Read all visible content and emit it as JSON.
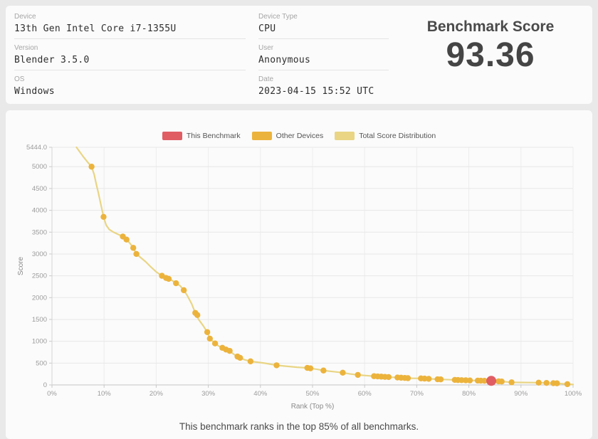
{
  "page": {
    "background": "#e9e9e9",
    "card_background": "#fbfbfb"
  },
  "info_card": {
    "fields_left": [
      {
        "label": "Device",
        "value": "13th Gen Intel Core i7-1355U"
      },
      {
        "label": "Version",
        "value": "Blender 3.5.0"
      },
      {
        "label": "OS",
        "value": "Windows"
      }
    ],
    "fields_right": [
      {
        "label": "Device Type",
        "value": "CPU"
      },
      {
        "label": "User",
        "value": "Anonymous"
      },
      {
        "label": "Date",
        "value": "2023-04-15 15:52 UTC"
      }
    ],
    "score_title": "Benchmark Score",
    "score_value": "93.36"
  },
  "chart_card": {
    "caption": "This benchmark ranks in the top 85% of all benchmarks."
  },
  "chart_data": {
    "type": "line",
    "title": "",
    "xlabel": "Rank (Top %)",
    "ylabel": "Score",
    "xlim": [
      0,
      100
    ],
    "ylim": [
      0,
      5444
    ],
    "y_max_label": "5444.0",
    "y_ticks": [
      0,
      500,
      1000,
      1500,
      2000,
      2500,
      3000,
      3500,
      4000,
      4500,
      5000
    ],
    "x_ticks": [
      "0%",
      "10%",
      "20%",
      "30%",
      "40%",
      "50%",
      "60%",
      "70%",
      "80%",
      "90%",
      "100%"
    ],
    "grid": true,
    "legend_position": "top-center",
    "legend": [
      {
        "label": "This Benchmark",
        "color": "#e05d64"
      },
      {
        "label": "Other Devices",
        "color": "#ecb33c"
      },
      {
        "label": "Total Score Distribution",
        "color": "#e9d584"
      }
    ],
    "series": [
      {
        "name": "Total Score Distribution",
        "type": "line",
        "color": "#e9d584",
        "points": [
          [
            4.7,
            5444
          ],
          [
            5.2,
            5360
          ],
          [
            6.0,
            5230
          ],
          [
            6.8,
            5110
          ],
          [
            7.6,
            5000
          ],
          [
            8.1,
            4820
          ],
          [
            8.5,
            4600
          ],
          [
            8.9,
            4400
          ],
          [
            9.3,
            4180
          ],
          [
            9.9,
            3850
          ],
          [
            10.4,
            3660
          ],
          [
            11.0,
            3560
          ],
          [
            11.8,
            3500
          ],
          [
            12.7,
            3450
          ],
          [
            13.6,
            3400
          ],
          [
            14.3,
            3330
          ],
          [
            15.0,
            3240
          ],
          [
            15.6,
            3140
          ],
          [
            16.2,
            3000
          ],
          [
            17.0,
            2920
          ],
          [
            18.0,
            2820
          ],
          [
            19.0,
            2700
          ],
          [
            20.0,
            2590
          ],
          [
            21.1,
            2500
          ],
          [
            21.9,
            2450
          ],
          [
            22.4,
            2430
          ],
          [
            23.1,
            2390
          ],
          [
            23.8,
            2330
          ],
          [
            24.6,
            2270
          ],
          [
            25.3,
            2170
          ],
          [
            26.0,
            2040
          ],
          [
            26.8,
            1860
          ],
          [
            27.5,
            1650
          ],
          [
            28.2,
            1490
          ],
          [
            29.0,
            1360
          ],
          [
            29.8,
            1210
          ],
          [
            30.3,
            1060
          ],
          [
            31.3,
            950
          ],
          [
            32.0,
            890
          ],
          [
            32.7,
            850
          ],
          [
            33.4,
            810
          ],
          [
            34.1,
            780
          ],
          [
            34.8,
            710
          ],
          [
            35.6,
            650
          ],
          [
            36.1,
            620
          ],
          [
            37.0,
            575
          ],
          [
            38.1,
            540
          ],
          [
            39.5,
            520
          ],
          [
            41.0,
            495
          ],
          [
            43.1,
            450
          ],
          [
            45.0,
            428
          ],
          [
            47.0,
            405
          ],
          [
            49.0,
            390
          ],
          [
            49.6,
            380
          ],
          [
            51.0,
            355
          ],
          [
            52.1,
            330
          ],
          [
            54.0,
            305
          ],
          [
            55.8,
            280
          ],
          [
            57.2,
            252
          ],
          [
            58.7,
            230
          ],
          [
            60.2,
            215
          ],
          [
            61.8,
            200
          ],
          [
            63.2,
            190
          ],
          [
            64.6,
            180
          ],
          [
            66.3,
            170
          ],
          [
            67.7,
            160
          ],
          [
            69.0,
            153
          ],
          [
            70.8,
            150
          ],
          [
            72.3,
            140
          ],
          [
            74.0,
            130
          ],
          [
            74.6,
            127
          ],
          [
            76.0,
            121
          ],
          [
            77.3,
            115
          ],
          [
            78.6,
            109
          ],
          [
            80.2,
            103
          ],
          [
            81.7,
            99
          ],
          [
            83.0,
            95
          ],
          [
            84.3,
            93
          ],
          [
            85.7,
            82
          ],
          [
            86.3,
            78
          ],
          [
            88.2,
            60
          ],
          [
            89.5,
            57
          ],
          [
            91.0,
            55
          ],
          [
            93.4,
            52
          ],
          [
            94.9,
            46
          ],
          [
            96.2,
            40
          ],
          [
            96.9,
            37
          ],
          [
            98.9,
            18
          ],
          [
            100,
            10
          ]
        ]
      },
      {
        "name": "Other Devices",
        "type": "scatter",
        "color": "#ecb33c",
        "points": [
          [
            7.6,
            5000
          ],
          [
            9.9,
            3850
          ],
          [
            13.6,
            3400
          ],
          [
            14.3,
            3330
          ],
          [
            15.6,
            3140
          ],
          [
            16.2,
            3000
          ],
          [
            21.1,
            2500
          ],
          [
            21.9,
            2450
          ],
          [
            22.4,
            2430
          ],
          [
            23.8,
            2330
          ],
          [
            25.3,
            2170
          ],
          [
            27.5,
            1650
          ],
          [
            27.9,
            1600
          ],
          [
            29.8,
            1210
          ],
          [
            30.3,
            1060
          ],
          [
            31.3,
            950
          ],
          [
            32.7,
            850
          ],
          [
            33.4,
            810
          ],
          [
            34.1,
            780
          ],
          [
            35.6,
            650
          ],
          [
            36.1,
            620
          ],
          [
            38.1,
            540
          ],
          [
            43.1,
            450
          ],
          [
            49.0,
            390
          ],
          [
            49.6,
            380
          ],
          [
            52.1,
            330
          ],
          [
            55.8,
            280
          ],
          [
            58.7,
            230
          ],
          [
            61.8,
            200
          ],
          [
            62.5,
            195
          ],
          [
            63.2,
            190
          ],
          [
            63.9,
            185
          ],
          [
            64.6,
            180
          ],
          [
            66.3,
            170
          ],
          [
            67.0,
            165
          ],
          [
            67.7,
            160
          ],
          [
            68.3,
            155
          ],
          [
            70.8,
            150
          ],
          [
            71.5,
            145
          ],
          [
            72.3,
            140
          ],
          [
            74.0,
            130
          ],
          [
            74.6,
            127
          ],
          [
            77.3,
            115
          ],
          [
            77.9,
            112
          ],
          [
            78.6,
            109
          ],
          [
            79.4,
            106
          ],
          [
            80.2,
            103
          ],
          [
            81.7,
            99
          ],
          [
            82.3,
            97
          ],
          [
            83.0,
            95
          ],
          [
            85.7,
            82
          ],
          [
            86.3,
            78
          ],
          [
            88.2,
            60
          ],
          [
            93.4,
            52
          ],
          [
            94.9,
            46
          ],
          [
            96.2,
            40
          ],
          [
            96.9,
            37
          ],
          [
            98.9,
            18
          ]
        ]
      },
      {
        "name": "This Benchmark",
        "type": "scatter",
        "color": "#e05d64",
        "points": [
          [
            84.3,
            93.36
          ]
        ]
      }
    ]
  }
}
